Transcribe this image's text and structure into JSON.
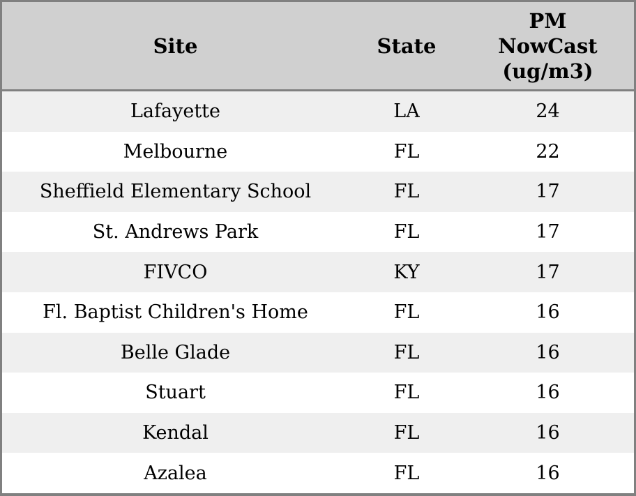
{
  "table": {
    "columns": [
      {
        "id": "site",
        "label": "Site"
      },
      {
        "id": "state",
        "label": "State"
      },
      {
        "id": "pm_nowcast",
        "label": "PM\nNowCast\n(ug/m3)"
      }
    ],
    "rows": [
      {
        "site": "Lafayette",
        "state": "LA",
        "pm": "24"
      },
      {
        "site": "Melbourne",
        "state": "FL",
        "pm": "22"
      },
      {
        "site": "Sheffield Elementary School",
        "state": "FL",
        "pm": "17"
      },
      {
        "site": "St. Andrews Park",
        "state": "FL",
        "pm": "17"
      },
      {
        "site": "FIVCO",
        "state": "KY",
        "pm": "17"
      },
      {
        "site": "Fl. Baptist Children's Home",
        "state": "FL",
        "pm": "16"
      },
      {
        "site": "Belle Glade",
        "state": "FL",
        "pm": "16"
      },
      {
        "site": "Stuart",
        "state": "FL",
        "pm": "16"
      },
      {
        "site": "Kendal",
        "state": "FL",
        "pm": "16"
      },
      {
        "site": "Azalea",
        "state": "FL",
        "pm": "16"
      }
    ]
  },
  "colors": {
    "border": "#808080",
    "header_bg": "#d0d0d0",
    "row_alt_bg": "#efefef",
    "row_bg": "#ffffff",
    "text": "#000000"
  },
  "chart_data": {
    "type": "table",
    "title": "",
    "columns": [
      "Site",
      "State",
      "PM NowCast (ug/m3)"
    ],
    "rows": [
      [
        "Lafayette",
        "LA",
        24
      ],
      [
        "Melbourne",
        "FL",
        22
      ],
      [
        "Sheffield Elementary School",
        "FL",
        17
      ],
      [
        "St. Andrews Park",
        "FL",
        17
      ],
      [
        "FIVCO",
        "KY",
        17
      ],
      [
        "Fl. Baptist Children's Home",
        "FL",
        16
      ],
      [
        "Belle Glade",
        "FL",
        16
      ],
      [
        "Stuart",
        "FL",
        16
      ],
      [
        "Kendal",
        "FL",
        16
      ],
      [
        "Azalea",
        "FL",
        16
      ]
    ]
  }
}
